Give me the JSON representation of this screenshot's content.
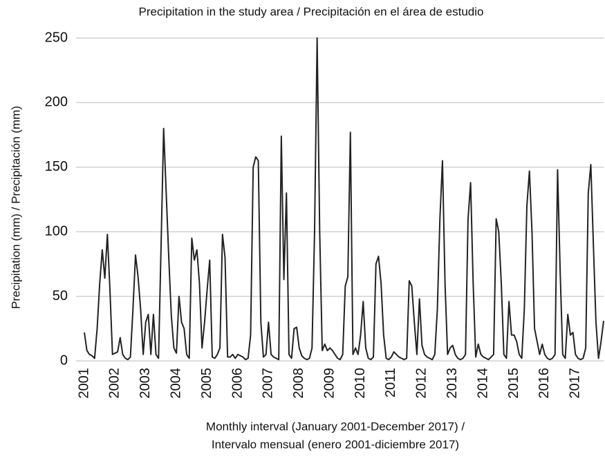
{
  "chart_data": {
    "type": "line",
    "title": "Precipitation in the study area / Precipitación en el área de estudio",
    "y_label": "Precipitation (mm) / Precipitación (mm)",
    "x_label": [
      "Monthly interval (January 2001-December 2017) /",
      "Intervalo mensual (enero 2001-diciembre 2017)"
    ],
    "categories": [
      "2001",
      null,
      null,
      null,
      null,
      null,
      null,
      null,
      null,
      null,
      null,
      null,
      "2002",
      null,
      null,
      null,
      null,
      null,
      null,
      null,
      null,
      null,
      null,
      null,
      "2003",
      null,
      null,
      null,
      null,
      null,
      null,
      null,
      null,
      null,
      null,
      null,
      "2004",
      null,
      null,
      null,
      null,
      null,
      null,
      null,
      null,
      null,
      null,
      null,
      "2005",
      null,
      null,
      null,
      null,
      null,
      null,
      null,
      null,
      null,
      null,
      null,
      "2006",
      null,
      null,
      null,
      null,
      null,
      null,
      null,
      null,
      null,
      null,
      null,
      "2007",
      null,
      null,
      null,
      null,
      null,
      null,
      null,
      null,
      null,
      null,
      null,
      "2008",
      null,
      null,
      null,
      null,
      null,
      null,
      null,
      null,
      null,
      null,
      null,
      "2009",
      null,
      null,
      null,
      null,
      null,
      null,
      null,
      null,
      null,
      null,
      null,
      "2010",
      null,
      null,
      null,
      null,
      null,
      null,
      null,
      null,
      null,
      null,
      null,
      "2011",
      null,
      null,
      null,
      null,
      null,
      null,
      null,
      null,
      null,
      null,
      null,
      "2012",
      null,
      null,
      null,
      null,
      null,
      null,
      null,
      null,
      null,
      null,
      null,
      "2013",
      null,
      null,
      null,
      null,
      null,
      null,
      null,
      null,
      null,
      null,
      null,
      "2014",
      null,
      null,
      null,
      null,
      null,
      null,
      null,
      null,
      null,
      null,
      null,
      "2015",
      null,
      null,
      null,
      null,
      null,
      null,
      null,
      null,
      null,
      null,
      null,
      "2016",
      null,
      null,
      null,
      null,
      null,
      null,
      null,
      null,
      null,
      null,
      null,
      "2017",
      null,
      null,
      null,
      null,
      null,
      null,
      null,
      null,
      null,
      null,
      null
    ],
    "values": [
      22,
      8,
      5,
      4,
      2,
      25,
      60,
      86,
      64,
      98,
      55,
      5,
      6,
      7,
      18,
      5,
      2,
      1,
      3,
      40,
      82,
      65,
      40,
      5,
      30,
      36,
      5,
      36,
      5,
      2,
      90,
      180,
      130,
      80,
      35,
      10,
      6,
      50,
      30,
      25,
      5,
      2,
      95,
      78,
      86,
      60,
      10,
      30,
      55,
      78,
      3,
      2,
      5,
      10,
      98,
      80,
      3,
      3,
      5,
      2,
      5,
      4,
      3,
      1,
      2,
      20,
      150,
      158,
      155,
      30,
      3,
      5,
      30,
      5,
      3,
      2,
      1,
      174,
      63,
      130,
      5,
      2,
      25,
      26,
      10,
      4,
      2,
      1,
      2,
      10,
      100,
      250,
      100,
      8,
      13,
      8,
      10,
      8,
      5,
      2,
      1,
      5,
      58,
      65,
      177,
      5,
      10,
      5,
      20,
      46,
      10,
      2,
      1,
      3,
      75,
      81,
      60,
      20,
      2,
      1,
      3,
      7,
      5,
      3,
      2,
      1,
      2,
      62,
      58,
      30,
      5,
      48,
      12,
      5,
      3,
      2,
      1,
      5,
      40,
      110,
      155,
      60,
      5,
      10,
      12,
      5,
      2,
      1,
      2,
      5,
      110,
      138,
      60,
      3,
      13,
      5,
      3,
      2,
      1,
      3,
      5,
      110,
      100,
      60,
      5,
      2,
      46,
      20,
      20,
      15,
      5,
      2,
      40,
      120,
      147,
      100,
      25,
      15,
      5,
      13,
      5,
      2,
      1,
      2,
      5,
      148,
      70,
      5,
      2,
      36,
      20,
      22,
      5,
      2,
      1,
      2,
      10,
      130,
      152,
      90,
      30,
      2,
      15,
      31
    ],
    "color": "#222222",
    "ylim": [
      0,
      250
    ],
    "yticks": [
      0,
      50,
      100,
      150,
      200,
      250
    ],
    "grid": true
  }
}
